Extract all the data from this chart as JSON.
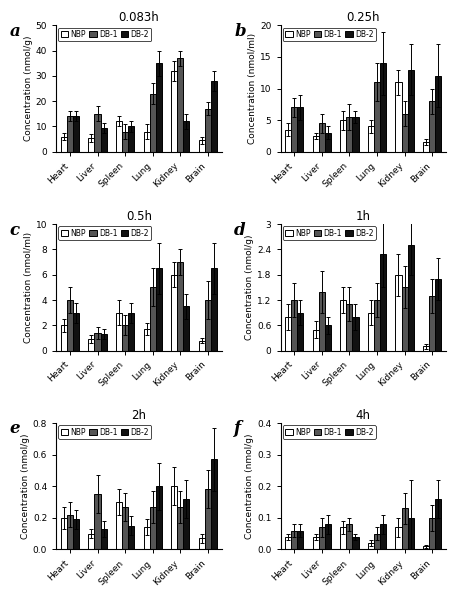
{
  "panels": [
    {
      "label": "a",
      "title": "0.083h",
      "ylabel": "Concentration (nmol/g)",
      "ylim": [
        0,
        50
      ],
      "yticks": [
        0,
        10,
        20,
        30,
        40,
        50
      ],
      "organs": [
        "Heart",
        "Liver",
        "Spleen",
        "Lung",
        "Kidney",
        "Brain"
      ],
      "NBP": [
        6,
        5.5,
        12,
        8,
        32,
        4.5
      ],
      "DB1": [
        14,
        15,
        8,
        23,
        37,
        17
      ],
      "DB2": [
        14,
        9.5,
        10,
        35,
        12,
        28
      ],
      "NBP_err": [
        1.5,
        1.5,
        2,
        3,
        4,
        1.5
      ],
      "DB1_err": [
        2,
        3,
        3,
        4,
        3,
        2.5
      ],
      "DB2_err": [
        2,
        2,
        2,
        5,
        3,
        4
      ]
    },
    {
      "label": "b",
      "title": "0.25h",
      "ylabel": "Concentration (nmol/ml)",
      "ylim": [
        0,
        20
      ],
      "yticks": [
        0,
        5,
        10,
        15,
        20
      ],
      "organs": [
        "Heart",
        "Liver",
        "Spleen",
        "Lung",
        "Kidney",
        "Brain"
      ],
      "NBP": [
        3.5,
        2.5,
        5,
        4,
        11,
        1.5
      ],
      "DB1": [
        7,
        4.5,
        5.5,
        11,
        6,
        8
      ],
      "DB2": [
        7,
        3,
        5.5,
        14,
        13,
        12
      ],
      "NBP_err": [
        1,
        0.5,
        1.5,
        1,
        2,
        0.5
      ],
      "DB1_err": [
        1.5,
        1.5,
        2,
        3,
        2,
        2
      ],
      "DB2_err": [
        2,
        1,
        1,
        5,
        4,
        5
      ]
    },
    {
      "label": "c",
      "title": "0.5h",
      "ylabel": "Concentration (nmol/ml)",
      "ylim": [
        0,
        10
      ],
      "yticks": [
        0,
        2,
        4,
        6,
        8,
        10
      ],
      "organs": [
        "Heart",
        "Liver",
        "Spleen",
        "Lung",
        "Kidney",
        "Brain"
      ],
      "NBP": [
        2,
        0.9,
        3,
        1.7,
        6,
        0.8
      ],
      "DB1": [
        4,
        1.4,
        2,
        5,
        7,
        4
      ],
      "DB2": [
        3,
        1.3,
        3,
        6.5,
        3.5,
        6.5
      ],
      "NBP_err": [
        0.5,
        0.3,
        1,
        0.5,
        1,
        0.2
      ],
      "DB1_err": [
        1,
        0.5,
        0.8,
        1.5,
        1,
        1.5
      ],
      "DB2_err": [
        0.8,
        0.4,
        0.8,
        2,
        1,
        2
      ]
    },
    {
      "label": "d",
      "title": "1h",
      "ylabel": "Concentration (nmol/g)",
      "ylim": [
        0,
        3.0
      ],
      "yticks": [
        0.0,
        0.6,
        1.2,
        1.8,
        2.4,
        3.0
      ],
      "organs": [
        "Heart",
        "Liver",
        "Spleen",
        "Lung",
        "Kidney",
        "Brain"
      ],
      "NBP": [
        0.8,
        0.5,
        1.2,
        0.9,
        1.8,
        0.1
      ],
      "DB1": [
        1.2,
        1.4,
        1.1,
        1.2,
        1.5,
        1.3
      ],
      "DB2": [
        0.9,
        0.6,
        0.8,
        2.3,
        2.5,
        1.7
      ],
      "NBP_err": [
        0.3,
        0.2,
        0.3,
        0.3,
        0.5,
        0.05
      ],
      "DB1_err": [
        0.4,
        0.5,
        0.4,
        0.4,
        0.5,
        0.4
      ],
      "DB2_err": [
        0.3,
        0.2,
        0.3,
        0.8,
        0.7,
        0.5
      ]
    },
    {
      "label": "e",
      "title": "2h",
      "ylabel": "Concentration (nmol/g)",
      "ylim": [
        0,
        0.8
      ],
      "yticks": [
        0.0,
        0.2,
        0.4,
        0.6,
        0.8
      ],
      "organs": [
        "Heart",
        "Liver",
        "Spleen",
        "Lung",
        "Kidney",
        "Brain"
      ],
      "NBP": [
        0.2,
        0.1,
        0.3,
        0.14,
        0.4,
        0.07
      ],
      "DB1": [
        0.22,
        0.35,
        0.27,
        0.27,
        0.27,
        0.38
      ],
      "DB2": [
        0.19,
        0.13,
        0.15,
        0.4,
        0.32,
        0.57
      ],
      "NBP_err": [
        0.07,
        0.03,
        0.08,
        0.05,
        0.12,
        0.03
      ],
      "DB1_err": [
        0.08,
        0.12,
        0.09,
        0.1,
        0.1,
        0.12
      ],
      "DB2_err": [
        0.06,
        0.05,
        0.06,
        0.15,
        0.12,
        0.2
      ]
    },
    {
      "label": "f",
      "title": "4h",
      "ylabel": "Concentration (nmol/g)",
      "ylim": [
        0,
        0.4
      ],
      "yticks": [
        0.0,
        0.1,
        0.2,
        0.3,
        0.4
      ],
      "organs": [
        "Heart",
        "Liver",
        "Spleen",
        "Lung",
        "Kidney",
        "Brain"
      ],
      "NBP": [
        0.04,
        0.04,
        0.07,
        0.02,
        0.07,
        0.01
      ],
      "DB1": [
        0.06,
        0.07,
        0.08,
        0.05,
        0.13,
        0.1
      ],
      "DB2": [
        0.06,
        0.08,
        0.04,
        0.08,
        0.1,
        0.16
      ],
      "NBP_err": [
        0.01,
        0.01,
        0.02,
        0.01,
        0.03,
        0.005
      ],
      "DB1_err": [
        0.02,
        0.03,
        0.02,
        0.02,
        0.05,
        0.04
      ],
      "DB2_err": [
        0.02,
        0.03,
        0.01,
        0.03,
        0.12,
        0.06
      ]
    }
  ],
  "bar_colors": {
    "NBP": "white",
    "DB1": "#555555",
    "DB2": "#111111"
  },
  "bar_edgecolor": "black",
  "bar_width": 0.22,
  "legend_labels": [
    "NBP",
    "DB-1",
    "DB-2"
  ],
  "figsize": [
    4.57,
    5.98
  ],
  "dpi": 100,
  "background": "white"
}
